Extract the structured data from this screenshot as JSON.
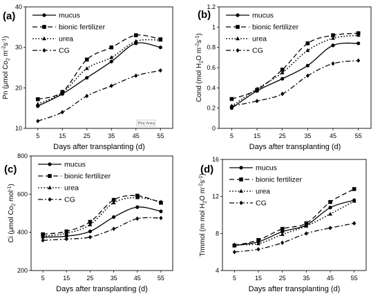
{
  "chart_data": [
    {
      "panel": "(a)",
      "type": "line",
      "x": [
        5,
        15,
        25,
        35,
        45,
        55
      ],
      "xlabel": "Days after transplanting (d)",
      "ylabel_parts": {
        "pre": "Pn (μmol Co",
        "sub1": "2",
        "mid": " m",
        "sup1": "-2",
        "mid2": "s",
        "sup2": "-1",
        "post": ")"
      },
      "ylim": [
        10,
        40
      ],
      "yticks": [
        "10",
        "20",
        "30",
        "40"
      ],
      "plot_area_label": "Plot Area",
      "legend": "top-left",
      "series": [
        {
          "name": "mucus",
          "style": "solid",
          "marker": "circle",
          "values": [
            15.5,
            18.5,
            22.5,
            26.5,
            31,
            30
          ]
        },
        {
          "name": "bionic fertilizer",
          "style": "dash",
          "marker": "square",
          "values": [
            17.2,
            19,
            27,
            30,
            33,
            32
          ]
        },
        {
          "name": "urea",
          "style": "dot",
          "marker": "triangle",
          "values": [
            16,
            18.8,
            24.8,
            27.5,
            31.5,
            31.8
          ]
        },
        {
          "name": "CG",
          "style": "dashdot",
          "marker": "diamond",
          "values": [
            11.8,
            14,
            18,
            20.5,
            23,
            24.3
          ]
        }
      ]
    },
    {
      "panel": "(b)",
      "type": "line",
      "x": [
        5,
        15,
        25,
        35,
        45,
        55
      ],
      "xlabel": "Days after transplanting (d)",
      "ylabel_parts": {
        "pre": "Cond (mol H",
        "sub1": "2",
        "mid": "O m",
        "sup1": "-2",
        "mid2": "s",
        "sup2": "-1",
        "post": ")"
      },
      "ylim": [
        0,
        1.2
      ],
      "yticks": [
        "0",
        "0.2",
        "0.4",
        "0.6",
        "0.8",
        "1",
        "1.2"
      ],
      "legend": "top-left",
      "series": [
        {
          "name": "mucus",
          "style": "solid",
          "marker": "circle",
          "values": [
            0.2,
            0.37,
            0.49,
            0.62,
            0.82,
            0.84
          ]
        },
        {
          "name": "bionic fertilizer",
          "style": "dash",
          "marker": "square",
          "values": [
            0.29,
            0.38,
            0.58,
            0.84,
            0.92,
            0.94
          ]
        },
        {
          "name": "urea",
          "style": "dot",
          "marker": "triangle",
          "values": [
            0.22,
            0.39,
            0.55,
            0.77,
            0.89,
            0.92
          ]
        },
        {
          "name": "CG",
          "style": "dashdot",
          "marker": "diamond",
          "values": [
            0.22,
            0.27,
            0.34,
            0.52,
            0.64,
            0.67
          ]
        }
      ]
    },
    {
      "panel": "(c)",
      "type": "line",
      "x": [
        5,
        15,
        25,
        35,
        45,
        55
      ],
      "xlabel": "Days after transplanting (d)",
      "ylabel_parts": {
        "pre": "Ci (μmol Co",
        "sub1": "2",
        "mid": " mol",
        "sup1": "-1",
        "mid2": "",
        "sup2": "",
        "post": ")"
      },
      "ylim": [
        200,
        800
      ],
      "yticks": [
        "200",
        "400",
        "600",
        "800"
      ],
      "legend": "top-left",
      "series": [
        {
          "name": "mucus",
          "style": "solid",
          "marker": "circle",
          "values": [
            375,
            380,
            405,
            480,
            532,
            510
          ]
        },
        {
          "name": "bionic fertilizer",
          "style": "dash",
          "marker": "square",
          "values": [
            390,
            405,
            455,
            570,
            592,
            555
          ]
        },
        {
          "name": "urea",
          "style": "dot",
          "marker": "triangle",
          "values": [
            380,
            395,
            440,
            555,
            582,
            560
          ]
        },
        {
          "name": "CG",
          "style": "dashdot",
          "marker": "diamond",
          "values": [
            358,
            365,
            375,
            418,
            472,
            475
          ]
        }
      ]
    },
    {
      "panel": "(d)",
      "type": "line",
      "x": [
        5,
        15,
        25,
        35,
        45,
        55
      ],
      "xlabel": "Days after transplanting (d)",
      "ylabel_parts": {
        "pre": "Trmmol (m mol H",
        "sub1": "2",
        "mid": "O m",
        "sup1": "-2",
        "mid2": "s",
        "sup2": "-1",
        "post": ")"
      },
      "ylim": [
        4,
        16
      ],
      "yticks": [
        "4",
        "8",
        "12",
        "16"
      ],
      "legend": "top-left",
      "series": [
        {
          "name": "mucus",
          "style": "solid",
          "marker": "circle",
          "values": [
            6.7,
            7.1,
            8.2,
            8.9,
            10.8,
            11.6
          ]
        },
        {
          "name": "bionic fertilizer",
          "style": "dash",
          "marker": "square",
          "values": [
            6.7,
            7.3,
            8.5,
            9.1,
            11.4,
            12.8
          ]
        },
        {
          "name": "urea",
          "style": "dot",
          "marker": "triangle",
          "values": [
            6.8,
            6.9,
            7.9,
            8.8,
            10.1,
            11.5
          ]
        },
        {
          "name": "CG",
          "style": "dashdot",
          "marker": "diamond",
          "values": [
            6.0,
            6.3,
            7.0,
            8.0,
            8.6,
            9.1
          ]
        }
      ]
    }
  ]
}
